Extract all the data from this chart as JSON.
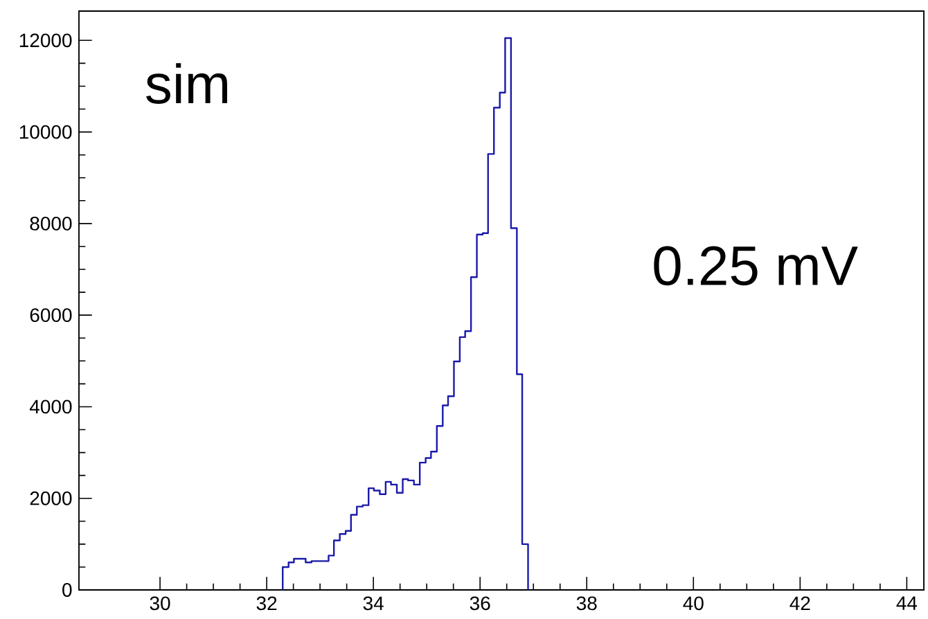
{
  "chart_data": {
    "type": "histogram",
    "bins": [
      32.3,
      32.41,
      32.51,
      32.62,
      32.73,
      32.84,
      32.94,
      33.05,
      33.16,
      33.26,
      33.37,
      33.48,
      33.58,
      33.69,
      33.8,
      33.91,
      34.01,
      34.12,
      34.23,
      34.33,
      34.44,
      34.55,
      34.65,
      34.76,
      34.87,
      34.98,
      35.08,
      35.19,
      35.3,
      35.4,
      35.51,
      35.62,
      35.72,
      35.83,
      35.94,
      36.05,
      36.15,
      36.26,
      36.37,
      36.47,
      36.58,
      36.69,
      36.79,
      36.9
    ],
    "values": [
      500,
      600,
      680,
      680,
      600,
      630,
      630,
      630,
      750,
      1080,
      1220,
      1290,
      1640,
      1820,
      1850,
      2220,
      2170,
      2090,
      2360,
      2300,
      2120,
      2420,
      2390,
      2300,
      2780,
      2880,
      3020,
      3580,
      4030,
      4230,
      4990,
      5520,
      5650,
      6830,
      7760,
      7790,
      9520,
      10530,
      10860,
      12050,
      7900,
      4710,
      1000
    ],
    "color": "#1a1aa8",
    "xlim": [
      28.48,
      44.32
    ],
    "ylim": [
      0,
      12640
    ],
    "xticks": [
      30,
      32,
      34,
      36,
      38,
      40,
      42,
      44
    ],
    "yticks": [
      0,
      2000,
      4000,
      6000,
      8000,
      10000,
      12000
    ],
    "annotations": [
      "sim",
      "0.25 mV"
    ]
  }
}
